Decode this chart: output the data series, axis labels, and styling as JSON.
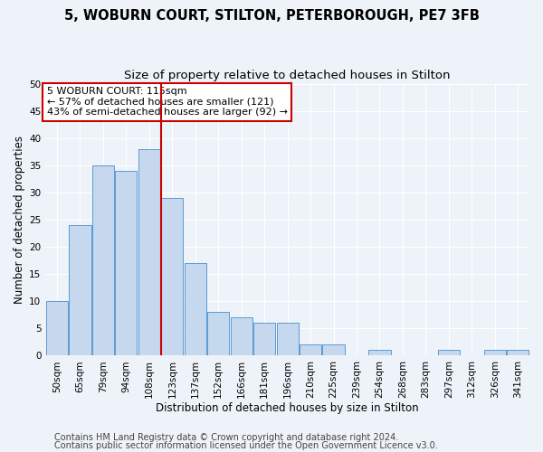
{
  "title1": "5, WOBURN COURT, STILTON, PETERBOROUGH, PE7 3FB",
  "title2": "Size of property relative to detached houses in Stilton",
  "xlabel": "Distribution of detached houses by size in Stilton",
  "ylabel": "Number of detached properties",
  "categories": [
    "50sqm",
    "65sqm",
    "79sqm",
    "94sqm",
    "108sqm",
    "123sqm",
    "137sqm",
    "152sqm",
    "166sqm",
    "181sqm",
    "196sqm",
    "210sqm",
    "225sqm",
    "239sqm",
    "254sqm",
    "268sqm",
    "283sqm",
    "297sqm",
    "312sqm",
    "326sqm",
    "341sqm"
  ],
  "values": [
    10,
    24,
    35,
    34,
    38,
    29,
    17,
    8,
    7,
    6,
    6,
    2,
    2,
    0,
    1,
    0,
    0,
    1,
    0,
    1,
    1
  ],
  "bar_color": "#c5d8ed",
  "bar_edge_color": "#5b9bd5",
  "vline_x": 4.5,
  "vline_color": "#cc0000",
  "annotation_text": "5 WOBURN COURT: 115sqm\n← 57% of detached houses are smaller (121)\n43% of semi-detached houses are larger (92) →",
  "annotation_box_color": "#ffffff",
  "annotation_box_edge": "#cc0000",
  "ylim": [
    0,
    50
  ],
  "yticks": [
    0,
    5,
    10,
    15,
    20,
    25,
    30,
    35,
    40,
    45,
    50
  ],
  "footer1": "Contains HM Land Registry data © Crown copyright and database right 2024.",
  "footer2": "Contains public sector information licensed under the Open Government Licence v3.0.",
  "bg_color": "#eef2f9",
  "grid_color": "#ffffff",
  "title1_fontsize": 10.5,
  "title2_fontsize": 9.5,
  "xlabel_fontsize": 8.5,
  "ylabel_fontsize": 8.5,
  "tick_fontsize": 7.5,
  "annotation_fontsize": 8,
  "footer_fontsize": 7
}
